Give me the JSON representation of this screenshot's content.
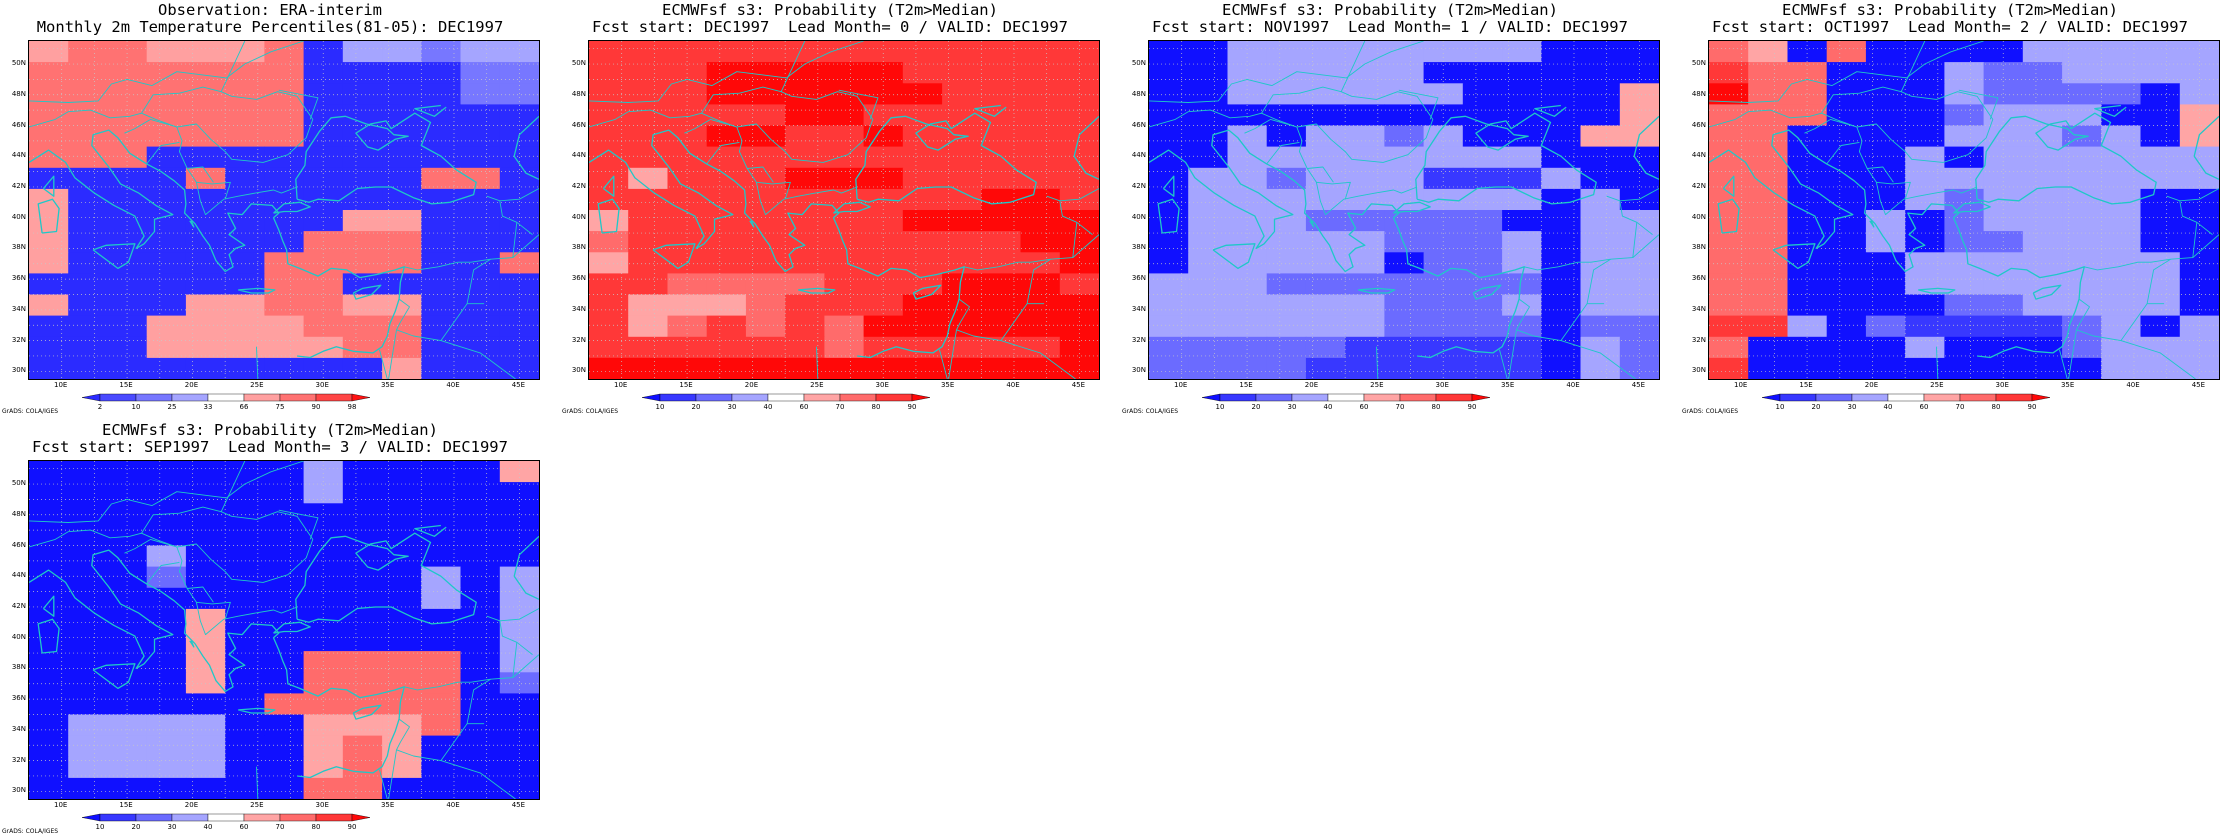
{
  "credit": "GrADS: COLA/IGES",
  "lat_labels": [
    "30N",
    "32N",
    "34N",
    "36N",
    "38N",
    "40N",
    "42N",
    "44N",
    "46N",
    "48N",
    "50N"
  ],
  "lon_labels": [
    "10E",
    "15E",
    "20E",
    "25E",
    "30E",
    "35E",
    "40E",
    "45E"
  ],
  "colors": {
    "obs": [
      "#2b2bff",
      "#4a4aff",
      "#7777ff",
      "#a5a5ff",
      "#ffffff",
      "#ffa0a0",
      "#ff7272",
      "#ff4545",
      "#ff1212"
    ],
    "prob": [
      "#1010ff",
      "#3838ff",
      "#6b6bff",
      "#a5a5ff",
      "#ffffff",
      "#ffa5a5",
      "#ff6b6b",
      "#ff3838",
      "#ff0808"
    ],
    "coast": "#1fc8c8"
  },
  "colorbar_ticks": {
    "obs": [
      "2",
      "10",
      "25",
      "33",
      "66",
      "75",
      "90",
      "98"
    ],
    "prob": [
      "10",
      "20",
      "30",
      "40",
      "60",
      "70",
      "80",
      "90"
    ]
  },
  "panels": [
    {
      "title1": "Observation: ERA-interim",
      "title2": "Monthly 2m Temperature Percentiles(81-05): DEC1997",
      "scale": "obs",
      "grid": [
        "5665556033233",
        "6666666000022",
        "6666666000022",
        "6666666000000",
        "6666666000000",
        "6660000000000",
        "0000600000660",
        "5000000000000",
        "5000000055000",
        "5000000666000",
        "5000006666006",
        "0000006600000",
        "5000556655000",
        "0005555666000",
        "0005555566000",
        "0000000005000"
      ]
    },
    {
      "title1": "ECMWFsf s3: Probability (T2m>Median)",
      "title2": "Fcst start: DEC1997  Lead Month= 0 / VALID: DEC1997",
      "scale": "prob",
      "grid": [
        "7777777777777",
        "7778888877777",
        "7778888887777",
        "7777788777777",
        "7778877877777",
        "7777777777777",
        "7577788877777",
        "7777777777887",
        "5777777788888",
        "6777777777788",
        "5777777777778",
        "7766667778887",
        "7555677788888",
        "7567676888888",
        "7777776777778",
        "8888888888888"
      ]
    },
    {
      "title1": "ECMWFsf s3: Probability (T2m>Median)",
      "title2": "Fcst start: NOV1997  Lead Month= 1 / VALID: DEC1997",
      "scale": "prob",
      "grid": [
        "0033333333000",
        "0033333000000",
        "0033333300005",
        "0000000000005",
        "0030332300055",
        "0033333333000",
        "0332333111300",
        "0333333333030",
        "0333222220033",
        "0333332223033",
        "0333330223033",
        "3332222222033",
        "3333332223033",
        "3333332222022",
        "2222211111032",
        "2222111111032"
      ]
    },
    {
      "title1": "ECMWFsf s3: Probability (T2m>Median)",
      "title2": "Fcst start: OCT1997  Lead Month= 2 / VALID: DEC1997",
      "scale": "prob",
      "grid": [
        "6506000033333",
        "7660003223333",
        "8660003222203",
        "6660002333005",
        "6600003332305",
        "6600030333333",
        "6600033333333",
        "6600032333300",
        "6600302333300",
        "6600302233300",
        "6600033333330",
        "6600033333330",
        "6600002233330",
        "7730211112303",
        "6000030002333",
        "7000000000333"
      ]
    },
    {
      "title1": "ECMWFsf s3: Probability (T2m>Median)",
      "title2": "Fcst start: SEP1997  Lead Month= 3 / VALID: DEC1997",
      "scale": "prob",
      "grid": [
        "0000000300005",
        "0000000300000",
        "0000000000000",
        "0000000000000",
        "0003000000000",
        "0002000000303",
        "0000000000303",
        "0000500000003",
        "0000500000003",
        "0000500666603",
        "0000500666602",
        "0000006666600",
        "0333300555600",
        "0333300565000",
        "0333300565000",
        "0000000660000"
      ]
    }
  ]
}
